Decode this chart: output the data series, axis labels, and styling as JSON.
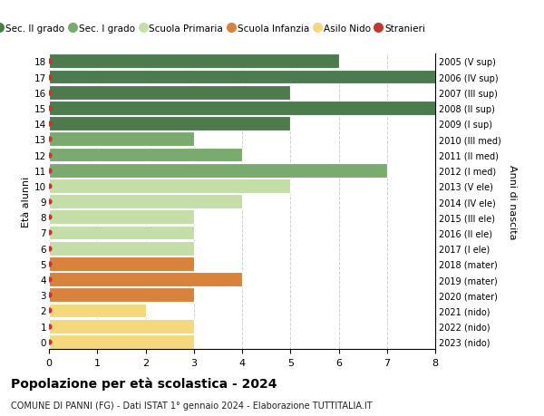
{
  "ages": [
    18,
    17,
    16,
    15,
    14,
    13,
    12,
    11,
    10,
    9,
    8,
    7,
    6,
    5,
    4,
    3,
    2,
    1,
    0
  ],
  "years_labels": [
    "2005 (V sup)",
    "2006 (IV sup)",
    "2007 (III sup)",
    "2008 (II sup)",
    "2009 (I sup)",
    "2010 (III med)",
    "2011 (II med)",
    "2012 (I med)",
    "2013 (V ele)",
    "2014 (IV ele)",
    "2015 (III ele)",
    "2016 (II ele)",
    "2017 (I ele)",
    "2018 (mater)",
    "2019 (mater)",
    "2020 (mater)",
    "2021 (nido)",
    "2022 (nido)",
    "2023 (nido)"
  ],
  "values": [
    6,
    8,
    5,
    8,
    5,
    3,
    4,
    7,
    5,
    4,
    3,
    3,
    3,
    3,
    4,
    3,
    2,
    3,
    3
  ],
  "bar_colors": [
    "#4a7c4e",
    "#4a7c4e",
    "#4a7c4e",
    "#4a7c4e",
    "#4a7c4e",
    "#7aab6e",
    "#7aab6e",
    "#7aab6e",
    "#c5dea8",
    "#c5dea8",
    "#c5dea8",
    "#c5dea8",
    "#c5dea8",
    "#d8823a",
    "#d8823a",
    "#d8823a",
    "#f5d87a",
    "#f5d87a",
    "#f5d87a"
  ],
  "stranieri_color": "#c0392b",
  "title": "Popolazione per età scolastica - 2024",
  "subtitle": "COMUNE DI PANNI (FG) - Dati ISTAT 1° gennaio 2024 - Elaborazione TUTTITALIA.IT",
  "ylabel_left": "Età alunni",
  "ylabel_right": "Anni di nascita",
  "xlim": [
    0,
    8
  ],
  "xticks": [
    0,
    1,
    2,
    3,
    4,
    5,
    6,
    7,
    8
  ],
  "legend_labels": [
    "Sec. II grado",
    "Sec. I grado",
    "Scuola Primaria",
    "Scuola Infanzia",
    "Asilo Nido",
    "Stranieri"
  ],
  "legend_colors": [
    "#4a7c4e",
    "#7aab6e",
    "#c5dea8",
    "#d8823a",
    "#f5d87a",
    "#c0392b"
  ],
  "background_color": "#ffffff",
  "grid_color": "#d0d0d0"
}
